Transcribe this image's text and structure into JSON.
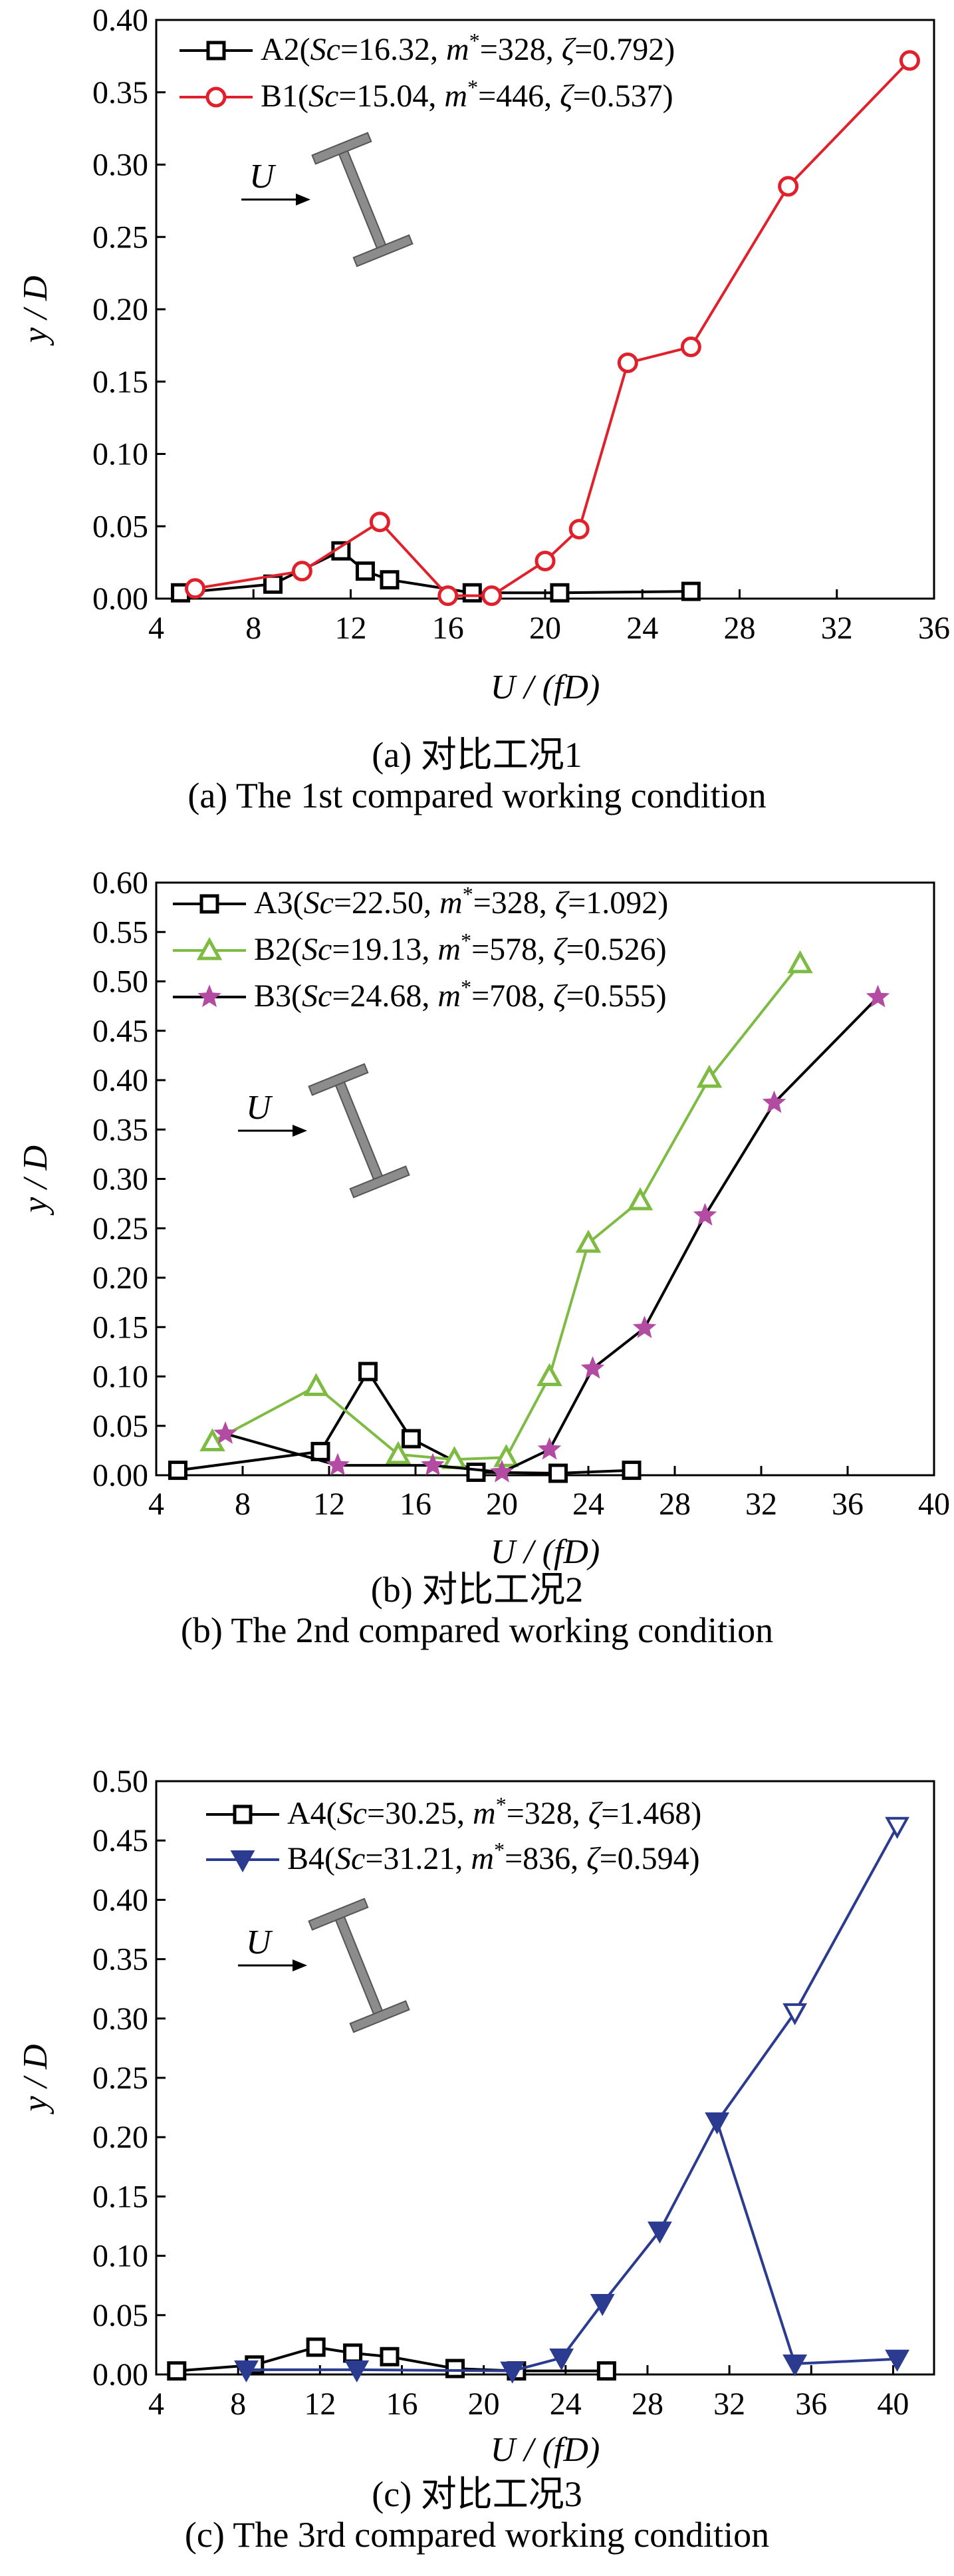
{
  "chart_data": [
    {
      "type": "line",
      "panel": "a",
      "xlabel": "U / (fD)",
      "ylabel": "y / D",
      "xlim": [
        4,
        36
      ],
      "ylim": [
        0,
        0.4
      ],
      "xticks": [
        "4",
        "8",
        "12",
        "16",
        "20",
        "24",
        "28",
        "32",
        "36"
      ],
      "yticks": [
        "0.00",
        "0.05",
        "0.10",
        "0.15",
        "0.20",
        "0.25",
        "0.30",
        "0.35",
        "0.40"
      ],
      "legend_position": "top-left",
      "flow_label": "U",
      "series": [
        {
          "name": "A2(Sc=16.32, m*=328, ζ=0.792)",
          "label_parts": {
            "id": "A2(",
            "sc": "=16.32, ",
            "m": "=328, ",
            "z": "=0.792)"
          },
          "color": "#000000",
          "marker": "square",
          "x": [
            5.0,
            8.8,
            11.6,
            12.6,
            13.6,
            17.0,
            20.6,
            26.0
          ],
          "y": [
            0.004,
            0.01,
            0.033,
            0.019,
            0.013,
            0.004,
            0.004,
            0.005
          ]
        },
        {
          "name": "B1(Sc=15.04, m*=446, ζ=0.537)",
          "label_parts": {
            "id": "B1(",
            "sc": "=15.04, ",
            "m": "=446, ",
            "z": "=0.537)"
          },
          "color": "#e0202a",
          "marker": "circle",
          "x": [
            5.6,
            10.0,
            13.2,
            16.0,
            17.8,
            20.0,
            21.4,
            23.4,
            26.0,
            30.0,
            35.0
          ],
          "y": [
            0.007,
            0.019,
            0.053,
            0.002,
            0.002,
            0.026,
            0.048,
            0.163,
            0.174,
            0.285,
            0.372
          ]
        }
      ],
      "caption_cn": "(a) 对比工况1",
      "caption_en": "(a) The 1st compared working condition"
    },
    {
      "type": "line",
      "panel": "b",
      "xlabel": "U / (fD)",
      "ylabel": "y / D",
      "xlim": [
        4,
        40
      ],
      "ylim": [
        0,
        0.6
      ],
      "xticks": [
        "4",
        "8",
        "12",
        "16",
        "20",
        "24",
        "28",
        "32",
        "36",
        "40"
      ],
      "yticks": [
        "0.00",
        "0.05",
        "0.10",
        "0.15",
        "0.20",
        "0.25",
        "0.30",
        "0.35",
        "0.40",
        "0.45",
        "0.50",
        "0.55",
        "0.60"
      ],
      "legend_position": "top-left",
      "flow_label": "U",
      "series": [
        {
          "name": "A3(Sc=22.50, m*=328, ζ=1.092)",
          "label_parts": {
            "id": "A3(",
            "sc": "=22.50, ",
            "m": "=328, ",
            "z": "=1.092)"
          },
          "color": "#000000",
          "marker": "square",
          "x": [
            5.0,
            11.6,
            13.8,
            15.8,
            18.8,
            22.6,
            26.0
          ],
          "y": [
            0.005,
            0.024,
            0.105,
            0.037,
            0.003,
            0.002,
            0.005
          ]
        },
        {
          "name": "B2(Sc=19.13, m*=578, ζ=0.526)",
          "label_parts": {
            "id": "B2(",
            "sc": "=19.13, ",
            "m": "=578, ",
            "z": "=0.526)"
          },
          "color": "#7dbb42",
          "marker": "triangle-up",
          "x": [
            6.6,
            11.4,
            15.2,
            17.8,
            20.2,
            22.2,
            24.0,
            26.4,
            29.6,
            33.8
          ],
          "y": [
            0.034,
            0.09,
            0.021,
            0.016,
            0.018,
            0.1,
            0.235,
            0.278,
            0.402,
            0.518
          ]
        },
        {
          "name": "B3(Sc=24.68, m*=708, ζ=0.555)",
          "label_parts": {
            "id": "B3(",
            "sc": "=24.68, ",
            "m": "=708, ",
            "z": "=0.555)"
          },
          "color": "#000000",
          "marker_color": "#b44ba3",
          "marker": "star",
          "x": [
            7.2,
            12.4,
            16.8,
            20.0,
            22.2,
            24.2,
            26.6,
            29.4,
            32.6,
            37.4
          ],
          "y": [
            0.042,
            0.01,
            0.01,
            0.003,
            0.026,
            0.108,
            0.149,
            0.263,
            0.377,
            0.484
          ]
        }
      ],
      "caption_cn": "(b) 对比工况2",
      "caption_en": "(b) The 2nd compared working condition"
    },
    {
      "type": "line",
      "panel": "c",
      "xlabel": "U / (fD)",
      "ylabel": "y / D",
      "xlim": [
        4,
        42
      ],
      "ylim": [
        0,
        0.5
      ],
      "xticks": [
        "4",
        "8",
        "12",
        "16",
        "20",
        "24",
        "28",
        "32",
        "36",
        "40"
      ],
      "yticks": [
        "0.00",
        "0.05",
        "0.10",
        "0.15",
        "0.20",
        "0.25",
        "0.30",
        "0.35",
        "0.40",
        "0.45",
        "0.50"
      ],
      "legend_position": "top-right",
      "flow_label": "U",
      "series": [
        {
          "name": "A4(Sc=30.25, m*=328, ζ=1.468)",
          "label_parts": {
            "id": "A4(",
            "sc": "=30.25, ",
            "m": "=328, ",
            "z": "=1.468)"
          },
          "color": "#000000",
          "marker": "square",
          "x": [
            5.0,
            8.8,
            11.8,
            13.6,
            15.4,
            18.6,
            21.6,
            26.0
          ],
          "y": [
            0.003,
            0.008,
            0.023,
            0.018,
            0.015,
            0.005,
            0.003,
            0.003
          ]
        },
        {
          "name": "B4(Sc=31.21, m*=836, ζ=0.594)",
          "label_parts": {
            "id": "B4(",
            "sc": "=31.21, ",
            "m": "=836, ",
            "z": "=0.594)"
          },
          "color": "#2b3b8f",
          "marker": "triangle-down",
          "x": [
            8.4,
            13.8,
            21.4,
            23.8,
            25.8,
            28.6,
            31.4,
            35.2,
            40.2
          ],
          "y": [
            0.004,
            0.004,
            0.003,
            0.014,
            0.06,
            0.121,
            0.213,
            0.009,
            0.013
          ],
          "open_branch": {
            "x": [
              31.4,
              35.2,
              40.2
            ],
            "y": [
              0.213,
              0.305,
              0.462
            ]
          }
        }
      ],
      "caption_cn": "(c) 对比工况3",
      "caption_en": "(c) The 3rd compared working condition"
    }
  ]
}
